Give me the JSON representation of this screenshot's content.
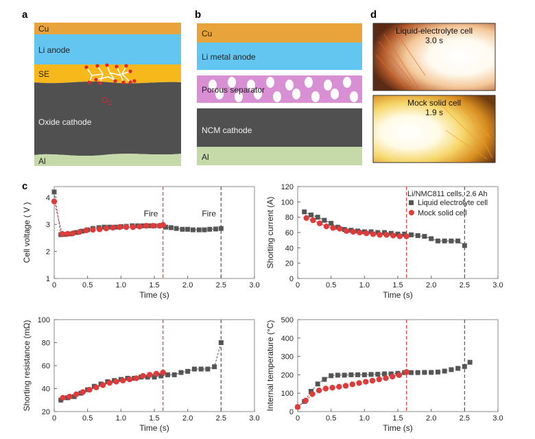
{
  "panel_letters": {
    "a": "a",
    "b": "b",
    "c": "c",
    "d": "d"
  },
  "panel_a": {
    "cu": "Cu",
    "anode": "Li anode",
    "se": "SE",
    "o2_base": "O",
    "o2_sub": "2",
    "cathode": "Oxide cathode",
    "al": "Al"
  },
  "panel_b": {
    "cu": "Cu",
    "anode": "Li metal anode",
    "separator": "Porous separator",
    "cathode": "NCM cathode",
    "al": "Al"
  },
  "panel_d": {
    "top_line1": "Liquid-electrolyte cell",
    "top_line2": "3.0 s",
    "bottom_line1": "Mock solid cell",
    "bottom_line2": "1.9 s"
  },
  "colors": {
    "cu": "#e8a43a",
    "li": "#63c6f0",
    "se": "#f6b81a",
    "cathode": "#505050",
    "al": "#c6d9a9",
    "separator": "#d88fd3",
    "liquid": "#555555",
    "solid": "#e03b3b",
    "red_line": "#e03b3b",
    "black_line": "#555555"
  },
  "legend": {
    "header": "Li/NMC811 cells, 2.6 Ah",
    "liquid": "Liquid electrolyte cell",
    "solid": "Mock solid cell"
  },
  "fire_label": "Fire",
  "chart_data": [
    {
      "type": "scatter",
      "xlabel": "Time (s)",
      "ylabel": "Cell voltage ( V )",
      "xlim": [
        0,
        3.0
      ],
      "ylim": [
        1,
        4.4
      ],
      "xticks": [
        "0",
        "0.5",
        "1.0",
        "1.5",
        "2.0",
        "2.5",
        "3.0"
      ],
      "yticks": [
        "1",
        "2",
        "3",
        "4"
      ],
      "vlines": [
        1.63,
        2.5
      ],
      "annotations": [
        "Fire",
        "Fire"
      ],
      "series": [
        {
          "name": "Liquid electrolyte cell",
          "x": [
            0.0,
            0.1,
            0.17,
            0.25,
            0.33,
            0.42,
            0.5,
            0.58,
            0.67,
            0.75,
            0.83,
            0.92,
            1.0,
            1.08,
            1.17,
            1.25,
            1.33,
            1.42,
            1.5,
            1.58,
            1.67,
            1.75,
            1.83,
            1.92,
            2.0,
            2.08,
            2.17,
            2.25,
            2.33,
            2.42,
            2.5
          ],
          "y": [
            4.2,
            2.62,
            2.63,
            2.65,
            2.7,
            2.75,
            2.8,
            2.85,
            2.88,
            2.9,
            2.9,
            2.9,
            2.92,
            2.93,
            2.95,
            2.95,
            2.95,
            2.95,
            2.95,
            2.95,
            2.9,
            2.88,
            2.85,
            2.82,
            2.82,
            2.8,
            2.8,
            2.8,
            2.82,
            2.83,
            2.85
          ]
        },
        {
          "name": "Mock solid cell",
          "x": [
            0.0,
            0.12,
            0.2,
            0.28,
            0.38,
            0.48,
            0.58,
            0.68,
            0.78,
            0.88,
            0.98,
            1.08,
            1.18,
            1.28,
            1.38,
            1.48,
            1.58,
            1.63
          ],
          "y": [
            3.85,
            2.65,
            2.65,
            2.67,
            2.72,
            2.78,
            2.8,
            2.82,
            2.85,
            2.88,
            2.9,
            2.9,
            2.9,
            2.92,
            2.95,
            2.95,
            2.95,
            2.98
          ]
        }
      ]
    },
    {
      "type": "scatter",
      "xlabel": "Time (s)",
      "ylabel": "Shorting current (A)",
      "xlim": [
        0,
        3.0
      ],
      "ylim": [
        0,
        120
      ],
      "xticks": [
        "0",
        "0.5",
        "1.0",
        "1.5",
        "2.0",
        "2.5",
        "3.0"
      ],
      "yticks": [
        "0",
        "20",
        "40",
        "60",
        "80",
        "100",
        "120"
      ],
      "vlines": [
        1.63,
        2.5
      ],
      "series": [
        {
          "name": "Liquid electrolyte cell",
          "x": [
            0.1,
            0.2,
            0.3,
            0.4,
            0.5,
            0.6,
            0.7,
            0.8,
            0.9,
            1.0,
            1.1,
            1.2,
            1.3,
            1.4,
            1.5,
            1.6,
            1.7,
            1.8,
            1.9,
            2.0,
            2.1,
            2.2,
            2.3,
            2.4,
            2.5
          ],
          "y": [
            87,
            83,
            80,
            76,
            72,
            67,
            64,
            63,
            62,
            61,
            61,
            60,
            60,
            59,
            58,
            58,
            57,
            56,
            55,
            52,
            49,
            49,
            49,
            49,
            43
          ]
        },
        {
          "name": "Mock solid cell",
          "x": [
            0.13,
            0.23,
            0.33,
            0.43,
            0.53,
            0.63,
            0.73,
            0.83,
            0.93,
            1.03,
            1.13,
            1.23,
            1.33,
            1.43,
            1.53,
            1.63
          ],
          "y": [
            79,
            76,
            72,
            68,
            66,
            65,
            62,
            61,
            60,
            59,
            58,
            57,
            57,
            56,
            55,
            55
          ]
        }
      ]
    },
    {
      "type": "scatter",
      "xlabel": "Time (s)",
      "ylabel": "Shorting resistance (mΩ)",
      "xlim": [
        0,
        3.0
      ],
      "ylim": [
        20,
        100
      ],
      "xticks": [
        "0",
        "0.5",
        "1.0",
        "1.5",
        "2.0",
        "2.5",
        "3.0"
      ],
      "yticks": [
        "20",
        "40",
        "60",
        "80",
        "100"
      ],
      "vlines": [
        1.63,
        2.5
      ],
      "series": [
        {
          "name": "Liquid electrolyte cell",
          "x": [
            0.1,
            0.2,
            0.3,
            0.4,
            0.5,
            0.6,
            0.7,
            0.8,
            0.9,
            1.0,
            1.1,
            1.2,
            1.3,
            1.4,
            1.5,
            1.6,
            1.7,
            1.8,
            1.9,
            2.0,
            2.1,
            2.2,
            2.3,
            2.4,
            2.5
          ],
          "y": [
            30,
            32,
            33,
            36,
            39,
            42,
            44,
            46,
            47,
            48,
            49,
            49,
            50,
            50,
            50,
            51,
            52,
            52,
            54,
            55,
            57,
            57,
            57,
            59,
            80
          ]
        },
        {
          "name": "Mock solid cell",
          "x": [
            0.13,
            0.23,
            0.33,
            0.43,
            0.53,
            0.63,
            0.73,
            0.83,
            0.93,
            1.03,
            1.13,
            1.23,
            1.33,
            1.43,
            1.53,
            1.63
          ],
          "y": [
            32,
            33,
            35,
            37,
            39,
            41,
            43,
            45,
            46,
            47,
            48,
            49,
            51,
            52,
            53,
            54
          ]
        }
      ]
    },
    {
      "type": "scatter",
      "xlabel": "Time (s)",
      "ylabel": "Internal temperature (°C)",
      "xlim": [
        0,
        3.0
      ],
      "ylim": [
        0,
        500
      ],
      "xticks": [
        "0",
        "0.5",
        "1.0",
        "1.5",
        "2.0",
        "2.5",
        "3.0"
      ],
      "yticks": [
        "0",
        "100",
        "200",
        "300",
        "400",
        "500"
      ],
      "vlines": [
        1.63,
        2.5
      ],
      "series": [
        {
          "name": "Liquid electrolyte cell",
          "x": [
            0.0,
            0.1,
            0.2,
            0.3,
            0.4,
            0.5,
            0.6,
            0.7,
            0.8,
            0.9,
            1.0,
            1.1,
            1.2,
            1.3,
            1.4,
            1.5,
            1.6,
            1.7,
            1.8,
            1.9,
            2.0,
            2.1,
            2.2,
            2.3,
            2.4,
            2.5,
            2.58
          ],
          "y": [
            25,
            55,
            110,
            150,
            175,
            195,
            198,
            198,
            200,
            200,
            200,
            202,
            203,
            205,
            205,
            208,
            212,
            212,
            212,
            213,
            213,
            215,
            220,
            228,
            235,
            245,
            268
          ]
        },
        {
          "name": "Mock solid cell",
          "x": [
            0.0,
            0.12,
            0.22,
            0.32,
            0.42,
            0.52,
            0.62,
            0.72,
            0.82,
            0.92,
            1.02,
            1.12,
            1.22,
            1.32,
            1.42,
            1.52,
            1.63
          ],
          "y": [
            25,
            60,
            95,
            115,
            125,
            130,
            135,
            140,
            148,
            155,
            162,
            168,
            175,
            182,
            190,
            198,
            215
          ]
        }
      ]
    }
  ]
}
